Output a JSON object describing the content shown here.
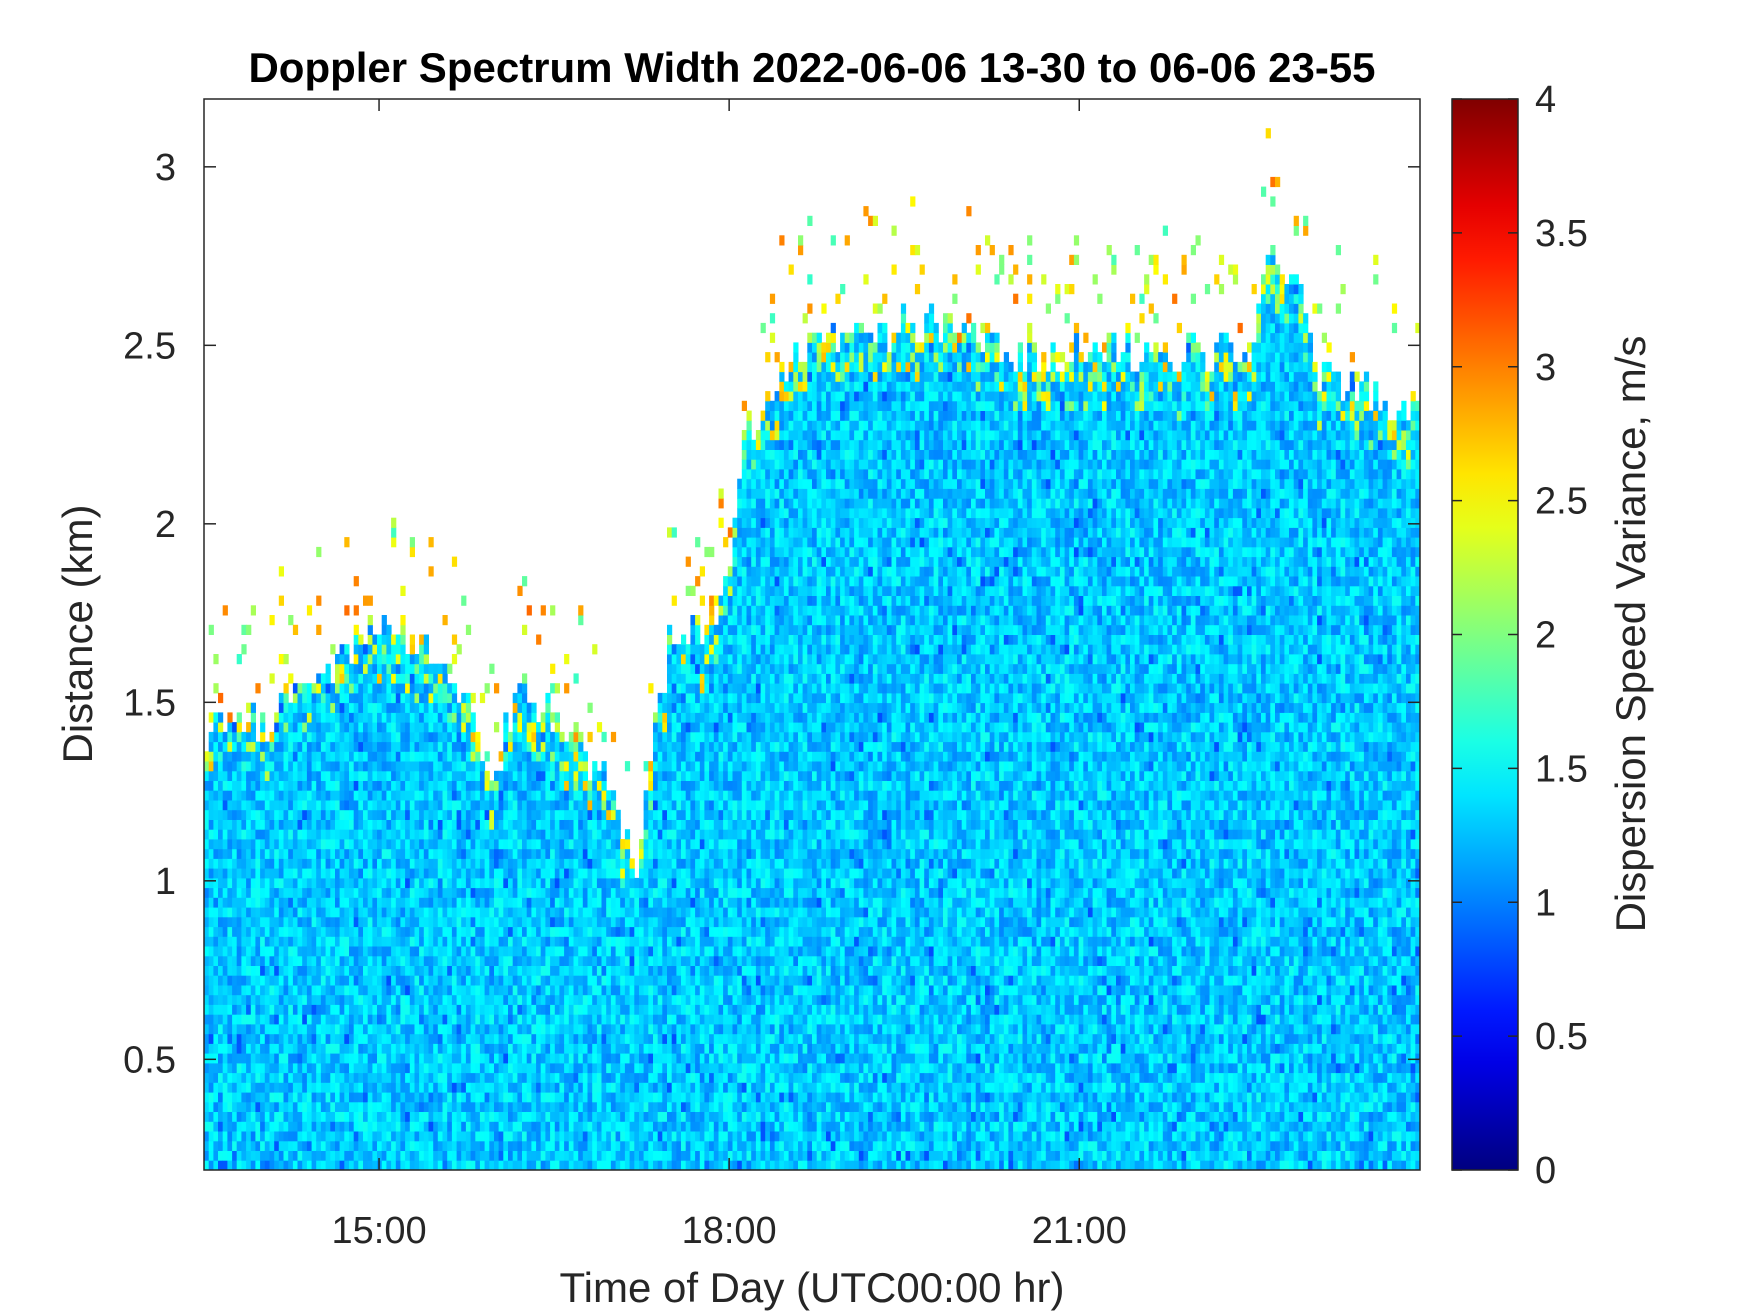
{
  "chart_data": {
    "type": "heatmap",
    "title": "Doppler Spectrum Width 2022-06-06 13-30 to 06-06 23-55",
    "xlabel": "Time of Day (UTC00:00 hr)",
    "ylabel": "Distance (km)",
    "x_unit": "hours (UTC)",
    "xlim": [
      13.5,
      23.92
    ],
    "ylim": [
      0.19,
      3.19
    ],
    "x_ticks": [
      {
        "value": 15,
        "label": "15:00"
      },
      {
        "value": 18,
        "label": "18:00"
      },
      {
        "value": 21,
        "label": "21:00"
      }
    ],
    "y_ticks": [
      {
        "value": 0.5,
        "label": "0.5"
      },
      {
        "value": 1,
        "label": "1"
      },
      {
        "value": 1.5,
        "label": "1.5"
      },
      {
        "value": 2,
        "label": "2"
      },
      {
        "value": 2.5,
        "label": "2.5"
      },
      {
        "value": 3,
        "label": "3"
      }
    ],
    "colorbar": {
      "label": "Dispersion Speed Variance, m/s",
      "min": 0,
      "max": 4,
      "colormap": "jet",
      "ticks": [
        {
          "value": 0,
          "label": "0"
        },
        {
          "value": 0.5,
          "label": "0.5"
        },
        {
          "value": 1,
          "label": "1"
        },
        {
          "value": 1.5,
          "label": "1.5"
        },
        {
          "value": 2,
          "label": "2"
        },
        {
          "value": 2.5,
          "label": "2.5"
        },
        {
          "value": 3,
          "label": "3"
        },
        {
          "value": 3.5,
          "label": "3.5"
        },
        {
          "value": 4,
          "label": "4"
        }
      ]
    },
    "typical_value_in_layer": 1.3,
    "data_top_profile": {
      "x": [
        13.5,
        13.6,
        14.0,
        14.5,
        15.0,
        15.5,
        16.0,
        16.2,
        16.5,
        16.8,
        17.0,
        17.2,
        17.45,
        17.5,
        17.8,
        18.0,
        18.1,
        18.5,
        19.0,
        19.5,
        20.0,
        20.5,
        21.0,
        21.5,
        22.0,
        22.5,
        22.6,
        22.9,
        23.0,
        23.5,
        23.92
      ],
      "top_km": [
        1.38,
        1.44,
        1.44,
        1.58,
        1.72,
        1.65,
        1.3,
        1.55,
        1.45,
        1.35,
        1.25,
        1.05,
        1.58,
        1.7,
        1.72,
        1.85,
        2.2,
        2.45,
        2.55,
        2.55,
        2.55,
        2.48,
        2.48,
        2.48,
        2.48,
        2.48,
        2.72,
        2.72,
        2.42,
        2.38,
        2.3
      ]
    },
    "high_value_edge_band_km": 0.06,
    "grid": false,
    "legend": "colorbar at right"
  }
}
